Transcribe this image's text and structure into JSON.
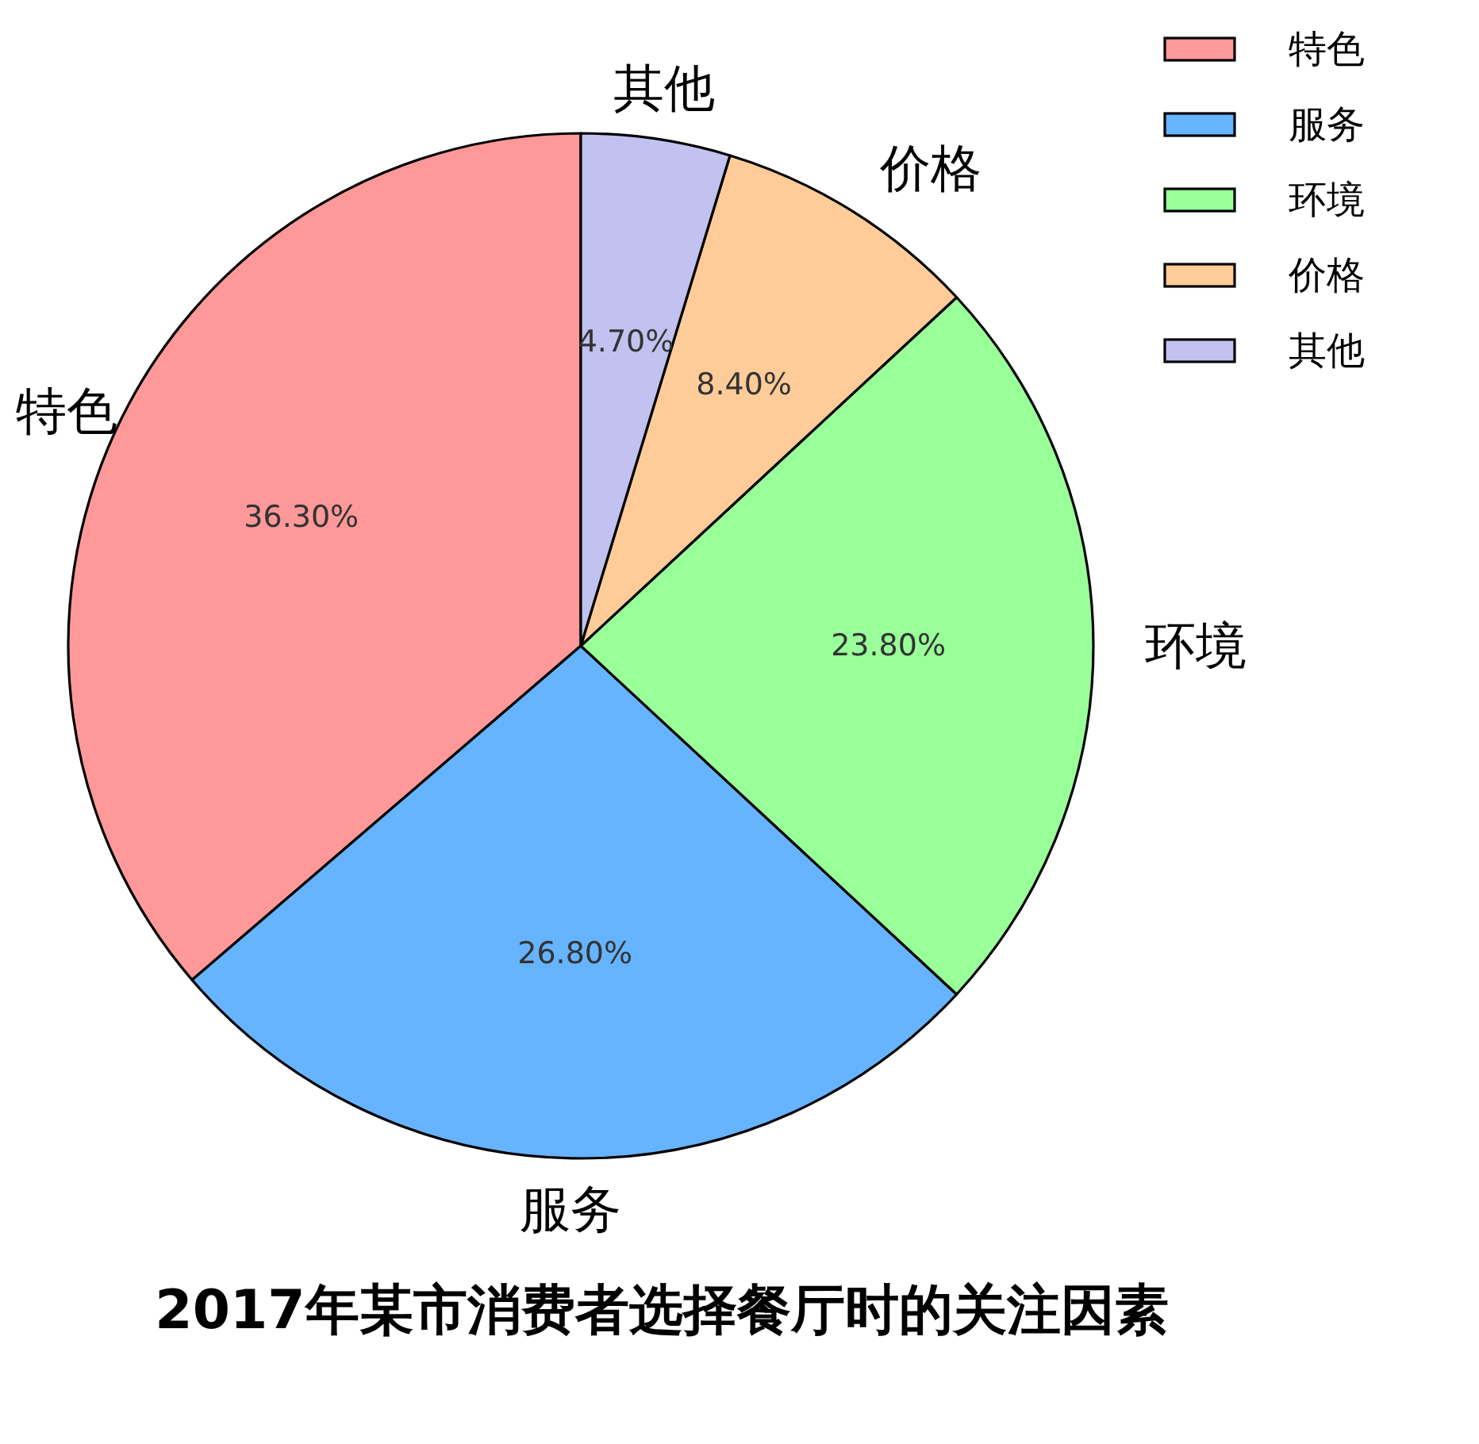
{
  "chart_data": {
    "type": "pie",
    "title": "2017年某市消费者选择餐厅时的关注因素",
    "categories": [
      "特色",
      "服务",
      "环境",
      "价格",
      "其他"
    ],
    "values": [
      36.3,
      26.8,
      23.8,
      8.4,
      4.7
    ],
    "colors": [
      "#ff9999",
      "#66b3ff",
      "#99ff99",
      "#ffcc99",
      "#c2c2f0"
    ],
    "value_labels": [
      "36.30%",
      "26.80%",
      "23.80%",
      "8.40%",
      "4.70%"
    ],
    "legend": "top right"
  }
}
